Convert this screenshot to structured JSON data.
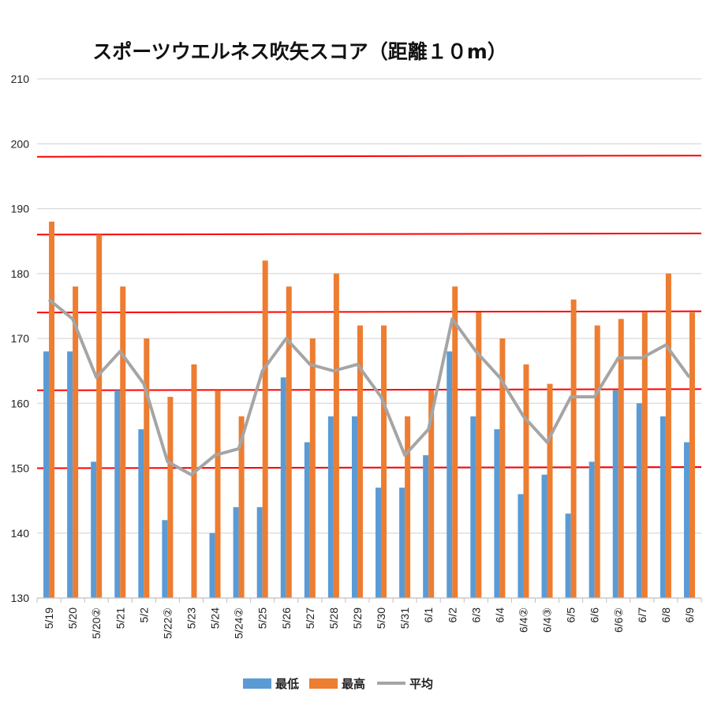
{
  "chart_data": {
    "type": "bar",
    "title": "スポーツウエルネス吹矢スコア（距離１０m）",
    "ylim": [
      130,
      210
    ],
    "yticks": [
      130,
      140,
      150,
      160,
      170,
      180,
      190,
      200,
      210
    ],
    "categories": [
      "5/19",
      "5/20",
      "5/20②",
      "5/21",
      "5/2",
      "5/22②",
      "5/23",
      "5/24",
      "5/24②",
      "5/25",
      "5/26",
      "5/27",
      "5/28",
      "5/29",
      "5/30",
      "5/31",
      "6/1",
      "6/2",
      "6/3",
      "6/4",
      "6/4②",
      "6/4③",
      "6/5",
      "6/6",
      "6/6②",
      "6/7",
      "6/8",
      "6/9"
    ],
    "series": [
      {
        "name": "最低",
        "type": "bar",
        "color": "#5b9bd5",
        "values": [
          168,
          168,
          151,
          162,
          156,
          142,
          null,
          140,
          144,
          144,
          164,
          154,
          158,
          158,
          147,
          147,
          152,
          168,
          158,
          156,
          146,
          149,
          143,
          151,
          162,
          160,
          158,
          154
        ]
      },
      {
        "name": "最高",
        "type": "bar",
        "color": "#ed7d31",
        "values": [
          188,
          178,
          186,
          178,
          170,
          161,
          166,
          162,
          158,
          182,
          178,
          170,
          180,
          172,
          172,
          158,
          162,
          178,
          174,
          170,
          166,
          163,
          176,
          172,
          173,
          174,
          180,
          174
        ]
      },
      {
        "name": "平均",
        "type": "line",
        "color": "#a5a5a5",
        "values": [
          176,
          173,
          164,
          168,
          163,
          151,
          149,
          152,
          153,
          165,
          170,
          166,
          165,
          166,
          161,
          152,
          156,
          173,
          168,
          164,
          158,
          154,
          161,
          161,
          167,
          167,
          169,
          164
        ]
      }
    ],
    "reference_lines": [
      150,
      162,
      174,
      186,
      198
    ],
    "reference_color": "#ff0000",
    "grid": true,
    "legend": "bottom"
  }
}
